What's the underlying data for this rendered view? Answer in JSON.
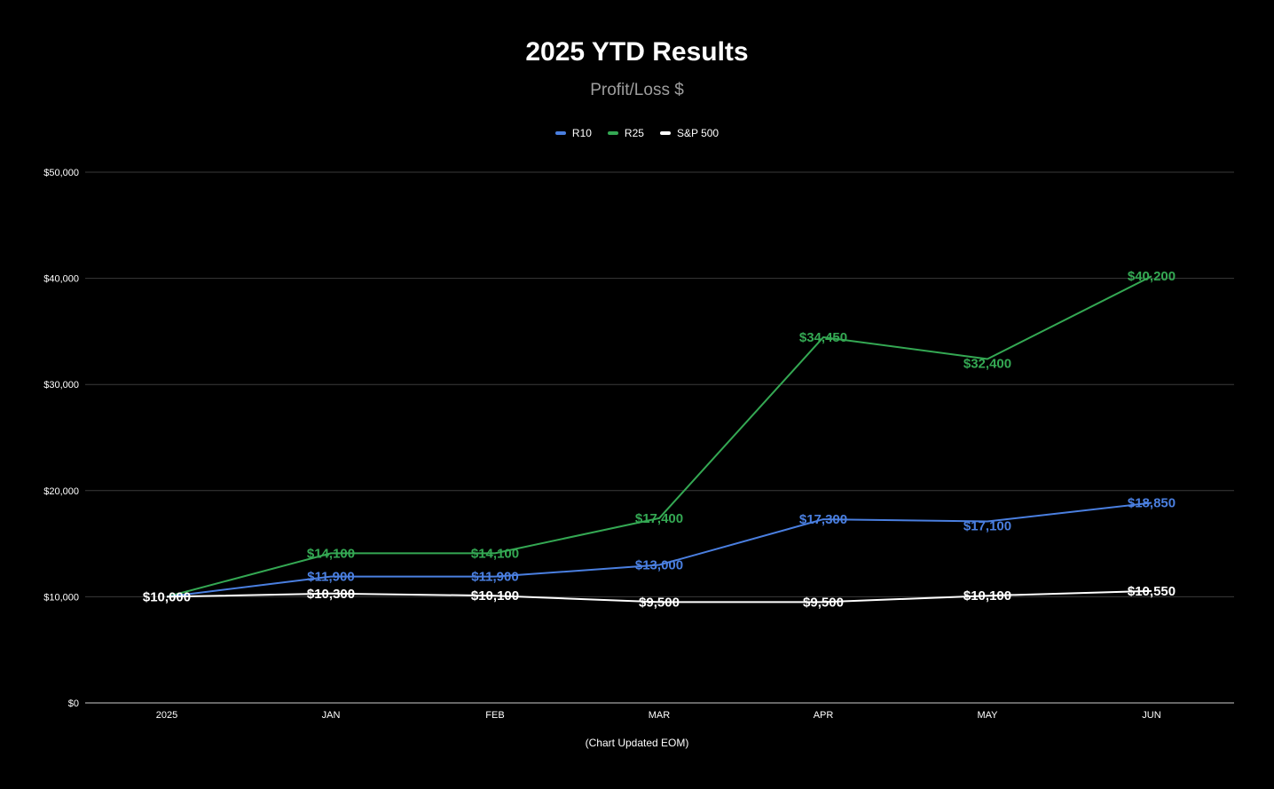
{
  "chart_data": {
    "type": "line",
    "title": "2025 YTD Results",
    "subtitle": "Profit/Loss $",
    "xlabel": "(Chart Updated EOM)",
    "ylabel": "",
    "categories": [
      "2025",
      "JAN",
      "FEB",
      "MAR",
      "APR",
      "MAY",
      "JUN"
    ],
    "ylim": [
      0,
      50000
    ],
    "yticks": [
      0,
      10000,
      20000,
      30000,
      40000,
      50000
    ],
    "ytick_labels": [
      "$0",
      "$10,000",
      "$20,000",
      "$30,000",
      "$40,000",
      "$50,000"
    ],
    "grid": true,
    "legend_position": "top",
    "series": [
      {
        "name": "R10",
        "color": "#4a7fe0",
        "values": [
          10000,
          11900,
          11900,
          13000,
          17300,
          17100,
          18850
        ],
        "labels": [
          "",
          "$11,900",
          "$11,900",
          "$13,000",
          "$17,300",
          "$17,100",
          "$18,850"
        ]
      },
      {
        "name": "R25",
        "color": "#34a853",
        "values": [
          10000,
          14100,
          14100,
          17400,
          34450,
          32400,
          40200
        ],
        "labels": [
          "",
          "$14,100",
          "$14,100",
          "$17,400",
          "$34,450",
          "$32,400",
          "$40,200"
        ]
      },
      {
        "name": "S&P 500",
        "color": "#ffffff",
        "values": [
          10000,
          10300,
          10100,
          9500,
          9500,
          10100,
          10550
        ],
        "labels": [
          "$10,000",
          "$10,300",
          "$10,100",
          "$9,500",
          "$9,500",
          "$10,100",
          "$10,550"
        ]
      }
    ]
  }
}
